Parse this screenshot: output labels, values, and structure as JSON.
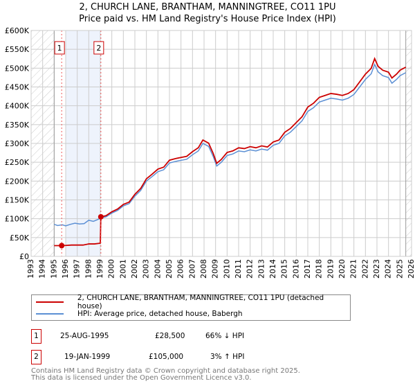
{
  "title_line1": "2, CHURCH LANE, BRANTHAM, MANNINGTREE, CO11 1PU",
  "title_line2": "Price paid vs. HM Land Registry's House Price Index (HPI)",
  "chart_data": {
    "type": "line",
    "xlim": [
      1993,
      2026
    ],
    "ylim": [
      0,
      600000
    ],
    "xticks": [
      "1993",
      "1994",
      "1995",
      "1996",
      "1997",
      "1998",
      "1999",
      "2000",
      "2001",
      "2002",
      "2003",
      "2004",
      "2005",
      "2006",
      "2007",
      "2008",
      "2009",
      "2010",
      "2011",
      "2012",
      "2013",
      "2014",
      "2015",
      "2016",
      "2017",
      "2018",
      "2019",
      "2020",
      "2021",
      "2022",
      "2023",
      "2024",
      "2025",
      "2026"
    ],
    "yticks": [
      "£0",
      "£50K",
      "£100K",
      "£150K",
      "£200K",
      "£250K",
      "£300K",
      "£350K",
      "£400K",
      "£450K",
      "£500K",
      "£550K",
      "£600K"
    ],
    "hatched_before": 1995,
    "hatched_after": 2025.5,
    "shaded_range": [
      1996,
      1999.05
    ],
    "series": [
      {
        "name": "HPI: Average price, detached house, Babergh",
        "color": "#5b8fd4",
        "x": [
          1995,
          1995.3,
          1995.7,
          1996,
          1996.4,
          1996.8,
          1997.2,
          1997.6,
          1998,
          1998.4,
          1998.8,
          1999.05,
          1999.5,
          2000,
          2000.5,
          2001,
          2001.5,
          2002,
          2002.5,
          2003,
          2003.5,
          2004,
          2004.5,
          2005,
          2005.5,
          2006,
          2006.5,
          2007,
          2007.5,
          2007.9,
          2008.4,
          2008.8,
          2009.1,
          2009.5,
          2010,
          2010.5,
          2011,
          2011.5,
          2012,
          2012.5,
          2013,
          2013.5,
          2014,
          2014.5,
          2015,
          2015.5,
          2016,
          2016.5,
          2017,
          2017.5,
          2018,
          2018.5,
          2019,
          2019.5,
          2020,
          2020.5,
          2021,
          2021.5,
          2022,
          2022.5,
          2022.8,
          2023.1,
          2023.5,
          2024,
          2024.3,
          2024.7,
          2025,
          2025.5
        ],
        "y": [
          85000,
          82000,
          84000,
          81000,
          85000,
          88000,
          86000,
          87000,
          96000,
          93000,
          98000,
          102000,
          105000,
          115000,
          122000,
          134000,
          140000,
          160000,
          175000,
          200000,
          212000,
          225000,
          230000,
          248000,
          252000,
          255000,
          258000,
          270000,
          280000,
          300000,
          292000,
          265000,
          240000,
          250000,
          268000,
          272000,
          280000,
          278000,
          283000,
          280000,
          285000,
          282000,
          295000,
          300000,
          320000,
          330000,
          345000,
          360000,
          385000,
          395000,
          410000,
          415000,
          420000,
          418000,
          415000,
          420000,
          430000,
          450000,
          470000,
          485000,
          510000,
          490000,
          480000,
          475000,
          460000,
          470000,
          480000,
          488000
        ]
      },
      {
        "name": "2, CHURCH LANE, BRANTHAM, MANNINGTREE, CO11 1PU (detached house)",
        "color": "#cc0000",
        "x": [
          1995,
          1995.65,
          1996,
          1996.5,
          1997,
          1997.5,
          1998,
          1998.5,
          1999.0,
          1999.05
        ],
        "y": [
          28500,
          28500,
          29000,
          30000,
          30000,
          30000,
          33000,
          33000,
          35000,
          105000
        ],
        "follow_hpi_ratio_after": 1999.05,
        "ratio": 1.03
      }
    ],
    "sales": [
      {
        "label": "1",
        "x": 1995.65,
        "y": 28500
      },
      {
        "label": "2",
        "x": 1999.05,
        "y": 105000
      }
    ]
  },
  "legend": [
    {
      "label": "2, CHURCH LANE, BRANTHAM, MANNINGTREE, CO11 1PU (detached house)",
      "color": "#cc0000"
    },
    {
      "label": "HPI: Average price, detached house, Babergh",
      "color": "#5b8fd4"
    }
  ],
  "transactions": [
    {
      "num": "1",
      "date": "25-AUG-1995",
      "price": "£28,500",
      "hpi": "66% ↓ HPI"
    },
    {
      "num": "2",
      "date": "19-JAN-1999",
      "price": "£105,000",
      "hpi": "3% ↑ HPI"
    }
  ],
  "footer": {
    "line1": "Contains HM Land Registry data © Crown copyright and database right 2025.",
    "line2": "This data is licensed under the Open Government Licence v3.0."
  }
}
